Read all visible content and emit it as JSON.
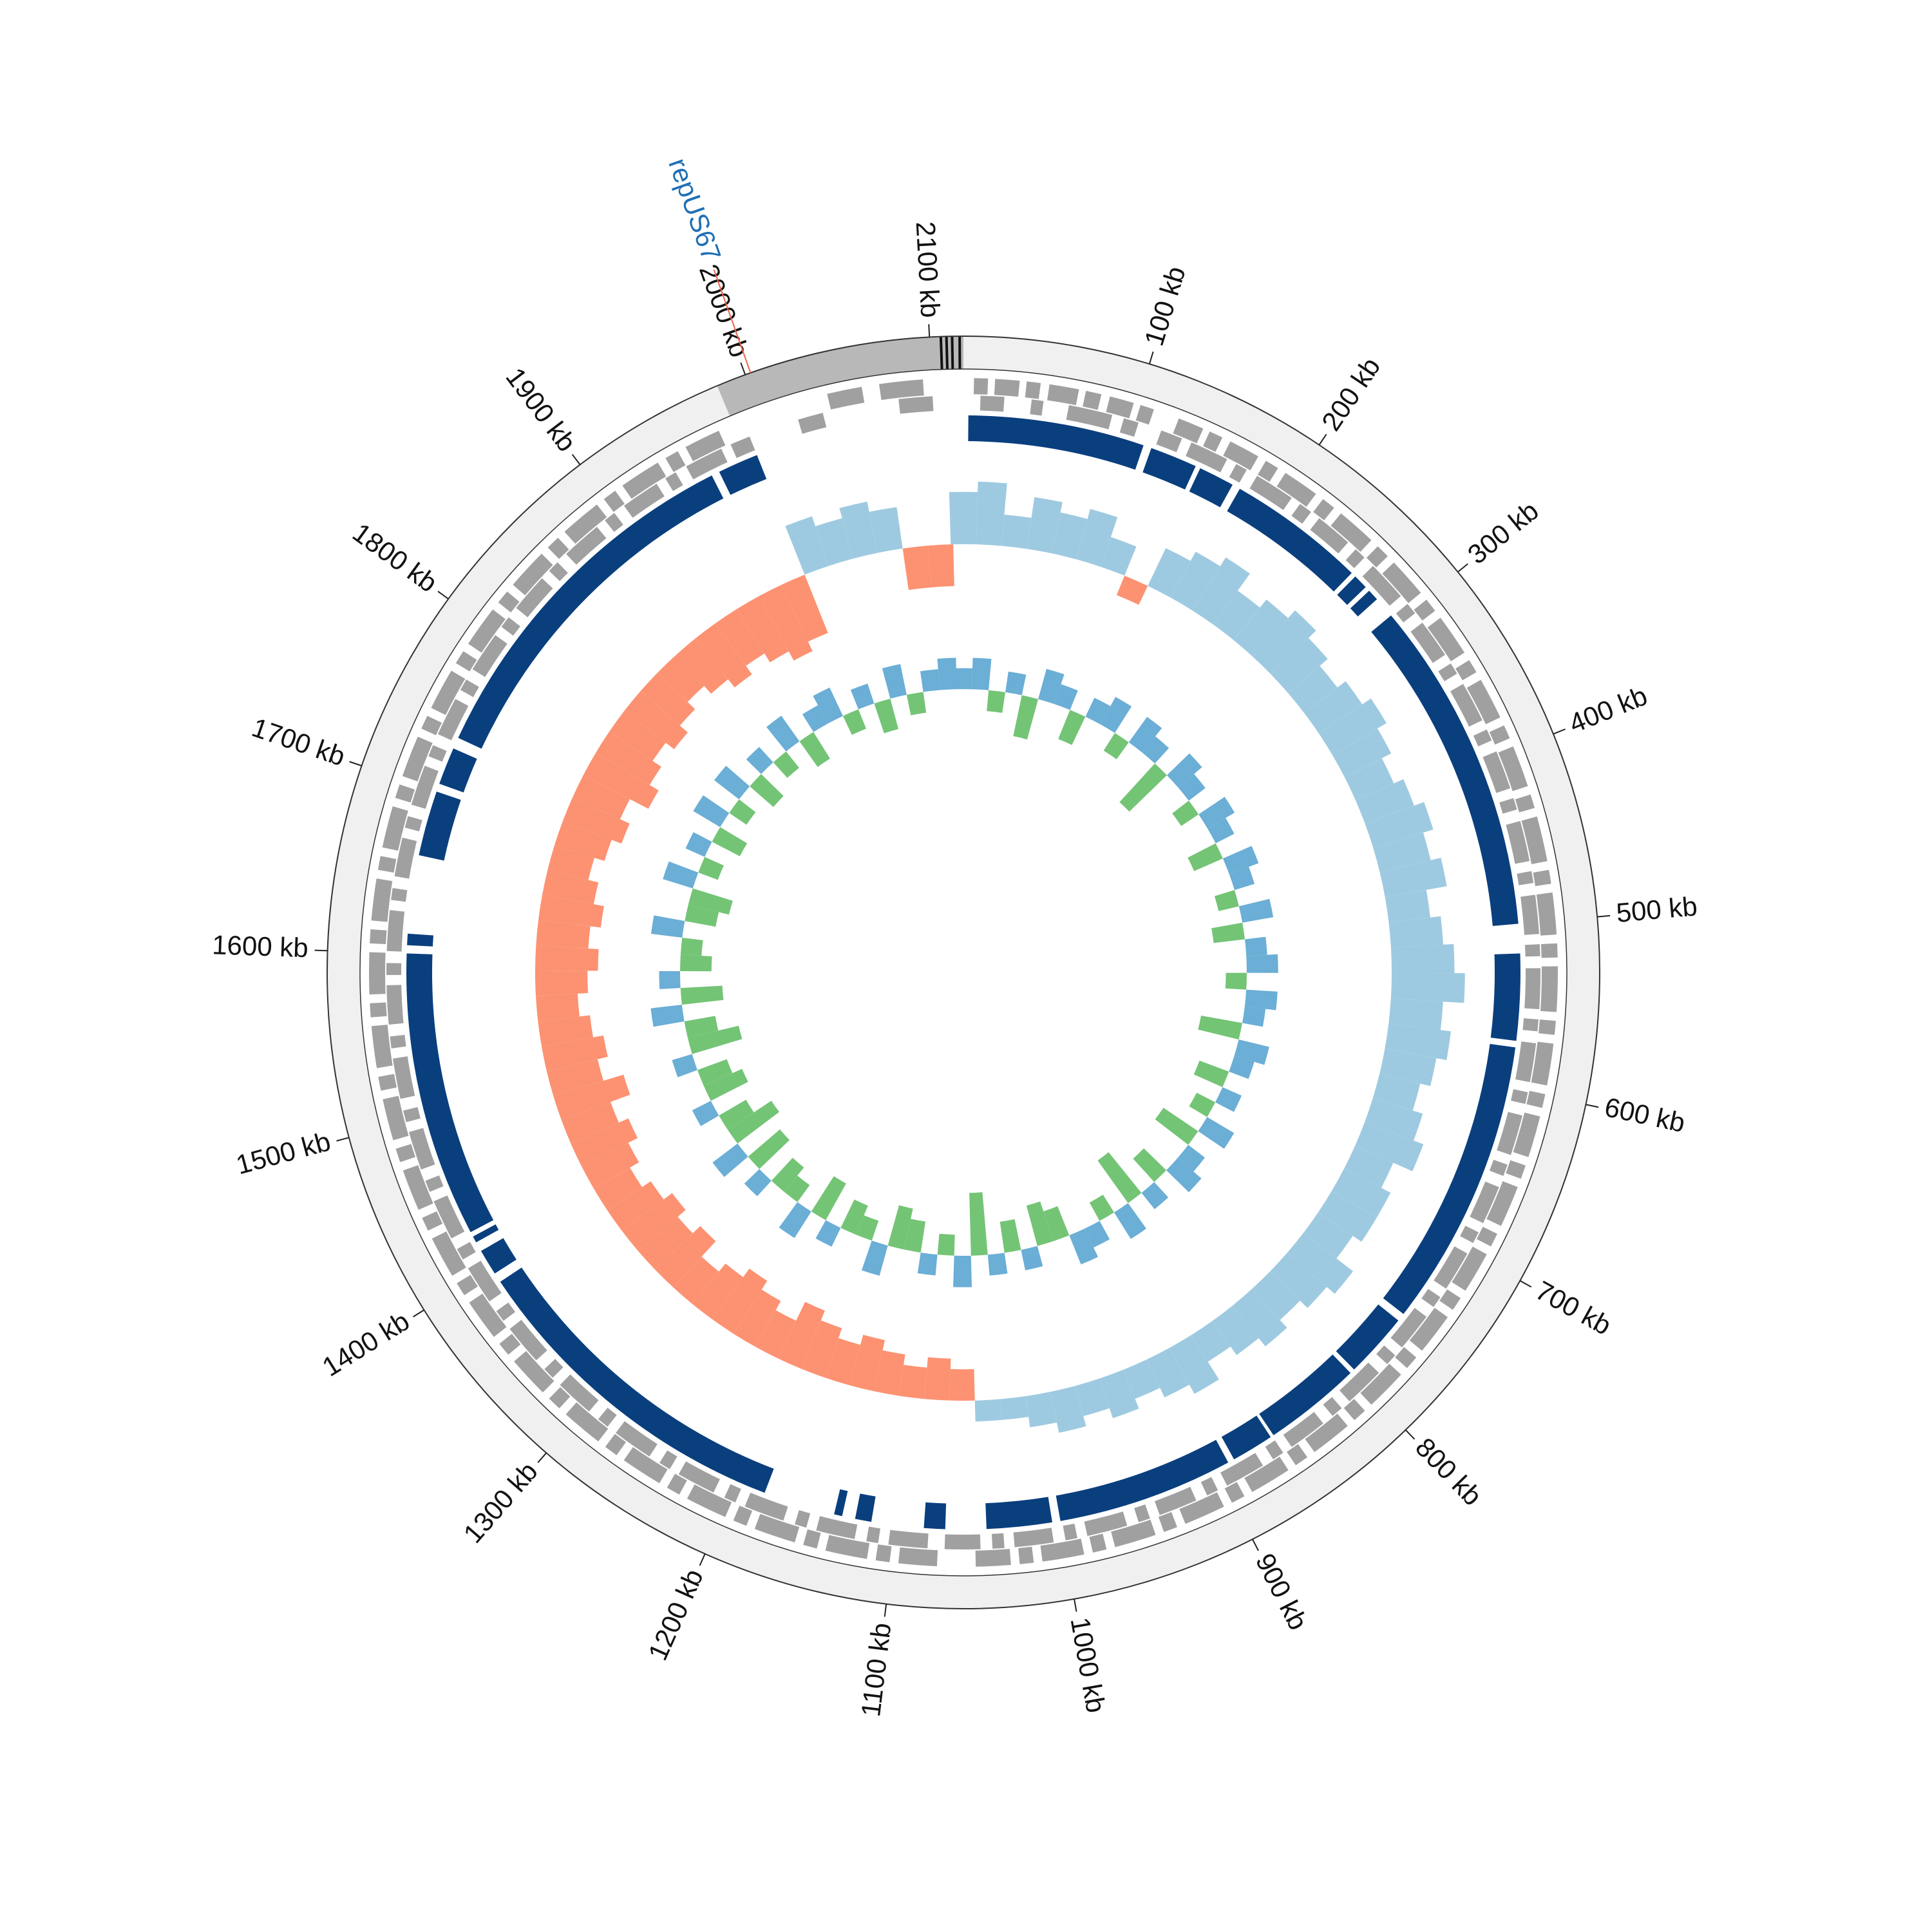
{
  "chart_data": {
    "type": "circular-genome",
    "xlim": [
      0,
      2118
    ],
    "xticks": [
      {
        "value": 100,
        "label": "100 kb"
      },
      {
        "value": 200,
        "label": "200 kb"
      },
      {
        "value": 300,
        "label": "300 kb"
      },
      {
        "value": 400,
        "label": "400 kb"
      },
      {
        "value": 500,
        "label": "500 kb"
      },
      {
        "value": 600,
        "label": "600 kb"
      },
      {
        "value": 700,
        "label": "700 kb"
      },
      {
        "value": 800,
        "label": "800 kb"
      },
      {
        "value": 900,
        "label": "900 kb"
      },
      {
        "value": 1000,
        "label": "1000 kb"
      },
      {
        "value": 1100,
        "label": "1100 kb"
      },
      {
        "value": 1200,
        "label": "1200 kb"
      },
      {
        "value": 1300,
        "label": "1300 kb"
      },
      {
        "value": 1400,
        "label": "1400 kb"
      },
      {
        "value": 1500,
        "label": "1500 kb"
      },
      {
        "value": 1600,
        "label": "1600 kb"
      },
      {
        "value": 1700,
        "label": "1700 kb"
      },
      {
        "value": 1800,
        "label": "1800 kb"
      },
      {
        "value": 1900,
        "label": "1900 kb"
      },
      {
        "value": 2000,
        "label": "2000 kb"
      },
      {
        "value": 2100,
        "label": "2100 kb"
      }
    ],
    "ring_color": "#f0f0f0",
    "highlight": {
      "range": [
        1984,
        2118
      ],
      "color": "#b8b8b8"
    },
    "markers": {
      "positions": [
        2106,
        2109,
        2112,
        2116
      ],
      "color": "#111111"
    },
    "annotation": {
      "label": "repUS67",
      "position": 2003,
      "color": "#1f6fb4",
      "line_color": "#f0624d"
    },
    "features": {
      "color": "#a0a0a0",
      "forward": [
        [
          6,
          14
        ],
        [
          18,
          32
        ],
        [
          36,
          44
        ],
        [
          49,
          66
        ],
        [
          70,
          79
        ],
        [
          84,
          98
        ],
        [
          102,
          110
        ],
        [
          125,
          140
        ],
        [
          144,
          152
        ],
        [
          157,
          175
        ],
        [
          180,
          188
        ],
        [
          193,
          214
        ],
        [
          219,
          227
        ],
        [
          232,
          255
        ],
        [
          260,
          268
        ],
        [
          273,
          296
        ],
        [
          301,
          309
        ],
        [
          314,
          338
        ],
        [
          343,
          351
        ],
        [
          356,
          380
        ],
        [
          385,
          393
        ],
        [
          398,
          422
        ],
        [
          427,
          435
        ],
        [
          440,
          466
        ],
        [
          471,
          479
        ],
        [
          484,
          508
        ],
        [
          513,
          521
        ],
        [
          526,
          552
        ],
        [
          557,
          565
        ],
        [
          570,
          594
        ],
        [
          599,
          607
        ],
        [
          612,
          636
        ],
        [
          641,
          649
        ],
        [
          654,
          678
        ],
        [
          683,
          691
        ],
        [
          696,
          720
        ],
        [
          725,
          733
        ],
        [
          738,
          762
        ],
        [
          767,
          775
        ],
        [
          780,
          804
        ],
        [
          809,
          817
        ],
        [
          822,
          846
        ],
        [
          851,
          859
        ],
        [
          864,
          888
        ],
        [
          893,
          901
        ],
        [
          906,
          930
        ],
        [
          935,
          943
        ],
        [
          948,
          972
        ],
        [
          977,
          985
        ],
        [
          990,
          1014
        ],
        [
          1019,
          1027
        ],
        [
          1032,
          1052
        ],
        [
          1074,
          1096
        ],
        [
          1101,
          1109
        ],
        [
          1114,
          1138
        ],
        [
          1143,
          1151
        ],
        [
          1156,
          1180
        ],
        [
          1185,
          1193
        ],
        [
          1198,
          1222
        ],
        [
          1227,
          1235
        ],
        [
          1240,
          1264
        ],
        [
          1269,
          1277
        ],
        [
          1282,
          1306
        ],
        [
          1311,
          1319
        ],
        [
          1324,
          1348
        ],
        [
          1353,
          1361
        ],
        [
          1366,
          1390
        ],
        [
          1395,
          1403
        ],
        [
          1408,
          1432
        ],
        [
          1437,
          1445
        ],
        [
          1450,
          1474
        ],
        [
          1479,
          1487
        ],
        [
          1492,
          1516
        ],
        [
          1521,
          1529
        ],
        [
          1534,
          1558
        ],
        [
          1563,
          1571
        ],
        [
          1576,
          1600
        ],
        [
          1605,
          1613
        ],
        [
          1618,
          1642
        ],
        [
          1647,
          1655
        ],
        [
          1660,
          1684
        ],
        [
          1689,
          1697
        ],
        [
          1702,
          1726
        ],
        [
          1731,
          1739
        ],
        [
          1744,
          1768
        ],
        [
          1773,
          1781
        ],
        [
          1786,
          1810
        ],
        [
          1815,
          1823
        ],
        [
          1828,
          1852
        ],
        [
          1857,
          1865
        ],
        [
          1870,
          1894
        ],
        [
          1899,
          1907
        ],
        [
          1912,
          1936
        ],
        [
          1941,
          1949
        ],
        [
          1954,
          1975
        ],
        [
          2040,
          2060
        ],
        [
          2070,
          2095
        ]
      ],
      "reverse": [
        [
          10,
          24
        ],
        [
          40,
          47
        ],
        [
          62,
          88
        ],
        [
          95,
          104
        ],
        [
          118,
          131
        ],
        [
          137,
          160
        ],
        [
          166,
          173
        ],
        [
          180,
          204
        ],
        [
          210,
          218
        ],
        [
          224,
          246
        ],
        [
          252,
          259
        ],
        [
          266,
          290
        ],
        [
          296,
          303
        ],
        [
          310,
          333
        ],
        [
          339,
          346
        ],
        [
          353,
          377
        ],
        [
          383,
          390
        ],
        [
          397,
          420
        ],
        [
          426,
          433
        ],
        [
          440,
          464
        ],
        [
          470,
          477
        ],
        [
          484,
          507
        ],
        [
          513,
          520
        ],
        [
          527,
          551
        ],
        [
          557,
          564
        ],
        [
          571,
          594
        ],
        [
          600,
          607
        ],
        [
          614,
          638
        ],
        [
          644,
          651
        ],
        [
          658,
          681
        ],
        [
          687,
          694
        ],
        [
          701,
          725
        ],
        [
          731,
          738
        ],
        [
          745,
          768
        ],
        [
          774,
          781
        ],
        [
          788,
          812
        ],
        [
          818,
          825
        ],
        [
          832,
          855
        ],
        [
          861,
          868
        ],
        [
          875,
          899
        ],
        [
          905,
          912
        ],
        [
          919,
          942
        ],
        [
          948,
          955
        ],
        [
          962,
          986
        ],
        [
          992,
          999
        ],
        [
          1006,
          1029
        ],
        [
          1035,
          1042
        ],
        [
          1049,
          1070
        ],
        [
          1080,
          1103
        ],
        [
          1109,
          1116
        ],
        [
          1123,
          1146
        ],
        [
          1152,
          1159
        ],
        [
          1166,
          1190
        ],
        [
          1196,
          1203
        ],
        [
          1210,
          1233
        ],
        [
          1239,
          1246
        ],
        [
          1253,
          1277
        ],
        [
          1283,
          1290
        ],
        [
          1297,
          1320
        ],
        [
          1326,
          1333
        ],
        [
          1340,
          1364
        ],
        [
          1370,
          1377
        ],
        [
          1384,
          1407
        ],
        [
          1413,
          1420
        ],
        [
          1427,
          1451
        ],
        [
          1457,
          1464
        ],
        [
          1471,
          1494
        ],
        [
          1500,
          1507
        ],
        [
          1514,
          1538
        ],
        [
          1544,
          1551
        ],
        [
          1558,
          1581
        ],
        [
          1587,
          1594
        ],
        [
          1601,
          1625
        ],
        [
          1631,
          1638
        ],
        [
          1645,
          1668
        ],
        [
          1674,
          1681
        ],
        [
          1688,
          1712
        ],
        [
          1718,
          1725
        ],
        [
          1732,
          1755
        ],
        [
          1761,
          1768
        ],
        [
          1775,
          1799
        ],
        [
          1805,
          1812
        ],
        [
          1819,
          1842
        ],
        [
          1848,
          1855
        ],
        [
          1862,
          1886
        ],
        [
          1892,
          1899
        ],
        [
          1906,
          1929
        ],
        [
          1935,
          1942
        ],
        [
          1949,
          1972
        ],
        [
          1978,
          1990
        ],
        [
          2020,
          2035
        ],
        [
          2080,
          2100
        ]
      ]
    },
    "blocks": {
      "color": "#0a3f7e",
      "ranges": [
        [
          3,
          111
        ],
        [
          116,
          145
        ],
        [
          148,
          170
        ],
        [
          175,
          260
        ],
        [
          263,
          272
        ],
        [
          275,
          282
        ],
        [
          295,
          500
        ],
        [
          518,
          571
        ],
        [
          575,
          752
        ],
        [
          757,
          797
        ],
        [
          800,
          860
        ],
        [
          862,
          888
        ],
        [
          892,
          1000
        ],
        [
          1005,
          1045
        ],
        [
          1070,
          1083
        ],
        [
          1115,
          1125
        ],
        [
          1133,
          1138
        ],
        [
          1182,
          1390
        ],
        [
          1396,
          1412
        ],
        [
          1418,
          1422
        ],
        [
          1425,
          1600
        ],
        [
          1605,
          1612
        ],
        [
          1660,
          1700
        ],
        [
          1705,
          1728
        ],
        [
          1735,
          1960
        ],
        [
          1965,
          1990
        ]
      ]
    },
    "x": [
      0,
      20,
      40,
      60,
      80,
      100,
      120,
      140,
      160,
      180,
      200,
      220,
      240,
      260,
      280,
      300,
      320,
      340,
      360,
      380,
      400,
      420,
      440,
      460,
      480,
      500,
      520,
      540,
      560,
      580,
      600,
      620,
      640,
      660,
      680,
      700,
      720,
      740,
      760,
      780,
      800,
      820,
      840,
      860,
      880,
      900,
      920,
      940,
      960,
      980,
      1000,
      1020,
      1040,
      1060,
      1080,
      1100,
      1120,
      1140,
      1160,
      1180,
      1200,
      1220,
      1240,
      1260,
      1280,
      1300,
      1320,
      1340,
      1360,
      1380,
      1400,
      1420,
      1440,
      1460,
      1480,
      1500,
      1520,
      1540,
      1560,
      1580,
      1600,
      1620,
      1640,
      1660,
      1680,
      1700,
      1720,
      1740,
      1760,
      1780,
      1800,
      1820,
      1840,
      1860,
      1880,
      1900,
      1920,
      1940,
      1960,
      1980,
      2000,
      2020,
      2040,
      2060,
      2080,
      2100
    ],
    "skew": {
      "ylim": [
        -0.08,
        0.08
      ],
      "pos_color": "#9ecae1",
      "neg_color": "#fc9272",
      "values": [
        0.05,
        0.06,
        0.03,
        0.05,
        0.04,
        0.05,
        0.03,
        -0.02,
        0.04,
        0.05,
        0.06,
        0.04,
        0.05,
        0.06,
        0.05,
        0.04,
        0.05,
        0.06,
        0.05,
        0.04,
        0.05,
        0.06,
        0.05,
        0.06,
        0.04,
        0.05,
        0.06,
        0.07,
        0.05,
        0.06,
        0.05,
        0.04,
        0.05,
        0.06,
        0.04,
        0.05,
        0.05,
        0.04,
        0.06,
        0.05,
        0.04,
        0.05,
        0.04,
        0.03,
        0.05,
        0.04,
        0.03,
        0.04,
        0.03,
        0.04,
        0.03,
        0.02,
        0.02,
        -0.03,
        -0.04,
        -0.03,
        -0.04,
        -0.05,
        -0.04,
        -0.05,
        -0.06,
        -0.04,
        -0.05,
        -0.06,
        -0.05,
        -0.04,
        -0.06,
        -0.05,
        -0.06,
        -0.05,
        -0.04,
        -0.05,
        -0.06,
        -0.05,
        -0.07,
        -0.05,
        -0.06,
        -0.05,
        -0.04,
        -0.05,
        -0.06,
        -0.05,
        -0.06,
        -0.05,
        -0.04,
        -0.05,
        -0.06,
        -0.05,
        -0.07,
        -0.06,
        -0.05,
        -0.06,
        -0.05,
        -0.04,
        -0.05,
        -0.06,
        -0.05,
        -0.06,
        -0.07,
        -0.06,
        0.05,
        0.04,
        0.05,
        0.04,
        -0.04,
        -0.04
      ]
    },
    "gc": {
      "ylim": [
        -8,
        8
      ],
      "pos_color": "#6baed6",
      "neg_color": "#74c476",
      "values": [
        2,
        3,
        -2,
        2,
        -4,
        3,
        2,
        -3,
        2,
        3,
        -2,
        3,
        2,
        -5,
        3,
        2,
        -2,
        3,
        2,
        -3,
        3,
        2,
        -2,
        3,
        -3,
        2,
        3,
        -2,
        3,
        2,
        -4,
        3,
        2,
        -3,
        2,
        -2,
        3,
        -4,
        2,
        3,
        -3,
        2,
        -5,
        3,
        -2,
        2,
        3,
        -3,
        -4,
        2,
        -3,
        2,
        -6,
        3,
        -2,
        2,
        -3,
        -4,
        3,
        -2,
        -3,
        2,
        -4,
        3,
        -2,
        -3,
        2,
        -4,
        3,
        -5,
        -3,
        2,
        -4,
        -3,
        2,
        -5,
        -3,
        3,
        -4,
        2,
        -3,
        -2,
        3,
        -3,
        -4,
        3,
        -2,
        2,
        -3,
        3,
        -2,
        3,
        -3,
        2,
        -2,
        3,
        -3,
        2,
        3,
        -2,
        2,
        -3,
        3,
        -2,
        2,
        3
      ]
    }
  }
}
